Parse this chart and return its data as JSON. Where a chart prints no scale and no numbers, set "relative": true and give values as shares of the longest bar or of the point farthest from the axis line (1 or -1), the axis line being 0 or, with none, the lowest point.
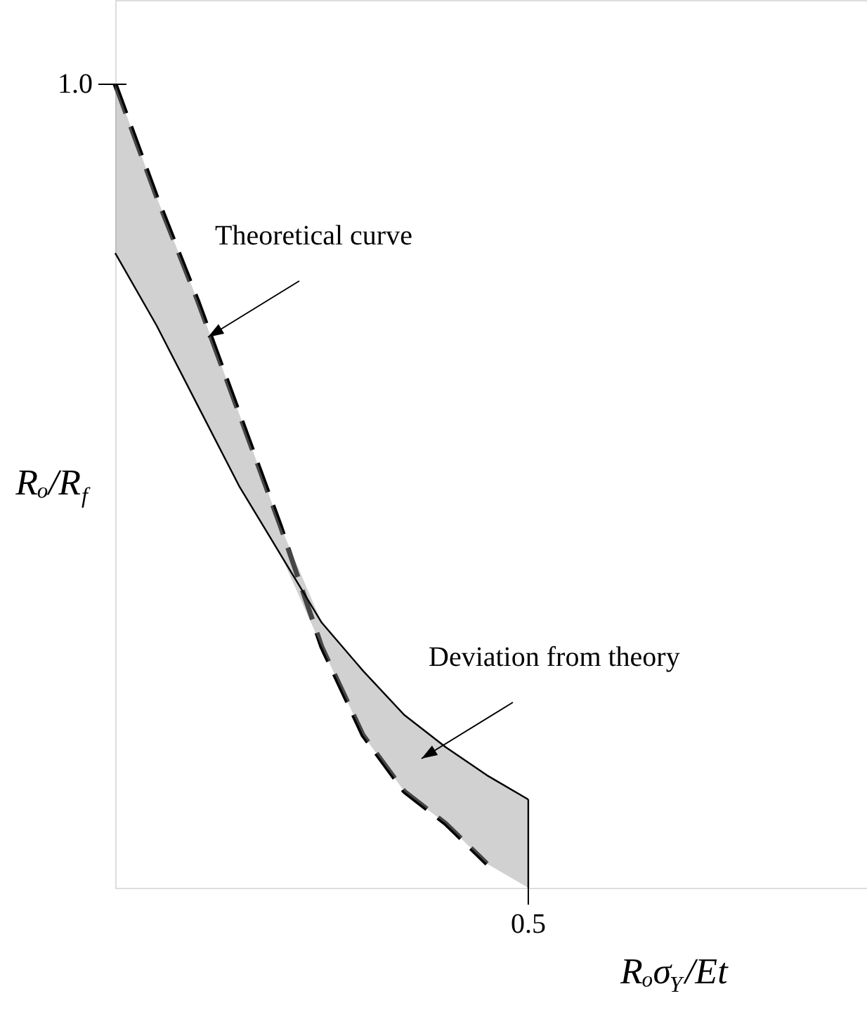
{
  "chart_data": {
    "type": "line",
    "xlabel": "Rₒσ$_{Y}$/Et",
    "ylabel": "Rₒ/R$_{f}$",
    "relative": true,
    "categories": [
      null,
      null,
      null,
      null,
      null,
      null,
      null,
      null,
      null,
      null,
      null,
      null,
      null,
      null,
      null,
      null,
      null,
      null,
      null
    ],
    "series": [
      {
        "color": "#000000",
        "line_style": "dashed",
        "values": [
          1.0,
          0.86,
          0.73,
          0.59,
          0.45,
          0.3,
          0.19,
          0.12,
          0.08,
          0.03,
          null,
          null,
          null,
          null,
          null,
          null,
          null,
          null,
          null
        ]
      },
      {
        "color": "#000000",
        "line_style": "solid",
        "values": [
          0.79,
          0.7,
          0.6,
          0.5,
          0.415,
          0.33,
          0.27,
          0.215,
          0.175,
          0.14,
          0.11,
          null,
          null,
          null,
          null,
          null,
          null,
          null,
          null
        ],
        "lower": [
          0.79,
          0.7,
          0.6,
          0.5,
          0.415,
          0.3,
          0.19,
          0.12,
          0.08,
          0.03,
          0,
          null,
          null,
          null,
          null,
          null,
          null,
          null,
          null
        ],
        "upper": [
          1.0,
          0.86,
          0.73,
          0.59,
          0.45,
          0.33,
          0.27,
          0.215,
          0.175,
          0.14,
          0.11,
          null,
          null,
          null,
          null,
          null,
          null,
          null,
          null
        ]
      }
    ],
    "annotations": [
      "Theoretical curve",
      "Deviation from theory",
      "1.0",
      "0.5"
    ]
  }
}
